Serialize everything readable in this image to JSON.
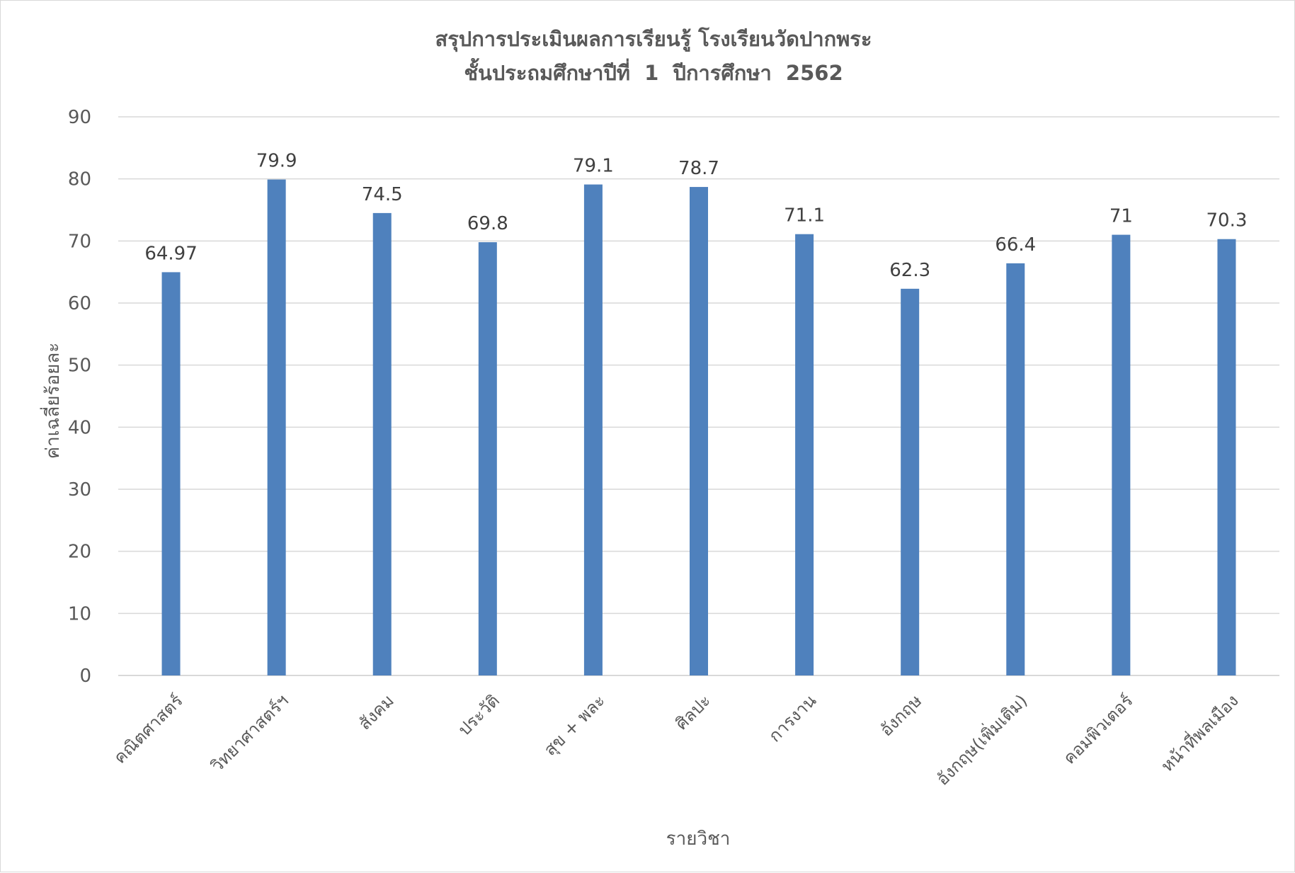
{
  "chart_data": {
    "type": "bar",
    "title": "สรุปการประเมินผลการเรียนรู้ โรงเรียนวัดปากพระ",
    "subtitle": "ชั้นประถมศึกษาปีที่  1  ปีการศึกษา  2562",
    "xlabel": "รายวิชา",
    "ylabel": "ค่าเฉลี่ยร้อยละ",
    "ylim": [
      0,
      90
    ],
    "yticks": [
      0,
      10,
      20,
      30,
      40,
      50,
      60,
      70,
      80,
      90
    ],
    "grid": true,
    "legend": "none",
    "bar_color": "#4f81bd",
    "categories": [
      "คณิตศาสตร์",
      "วิทยาศาสตร์ฯ",
      "สังคม",
      "ประวัติ",
      "สุข + พละ",
      "ศิลปะ",
      "การงาน",
      "อังกฤษ",
      "อังกฤษ(เพิ่มเติม)",
      "คอมพิวเตอร์",
      "หน้าที่พลเมือง"
    ],
    "values": [
      64.97,
      79.9,
      74.5,
      69.8,
      79.1,
      78.7,
      71.1,
      62.3,
      66.4,
      71,
      70.3
    ],
    "data_labels": [
      "64.97",
      "79.9",
      "74.5",
      "69.8",
      "79.1",
      "78.7",
      "71.1",
      "62.3",
      "66.4",
      "71",
      "70.3"
    ]
  }
}
